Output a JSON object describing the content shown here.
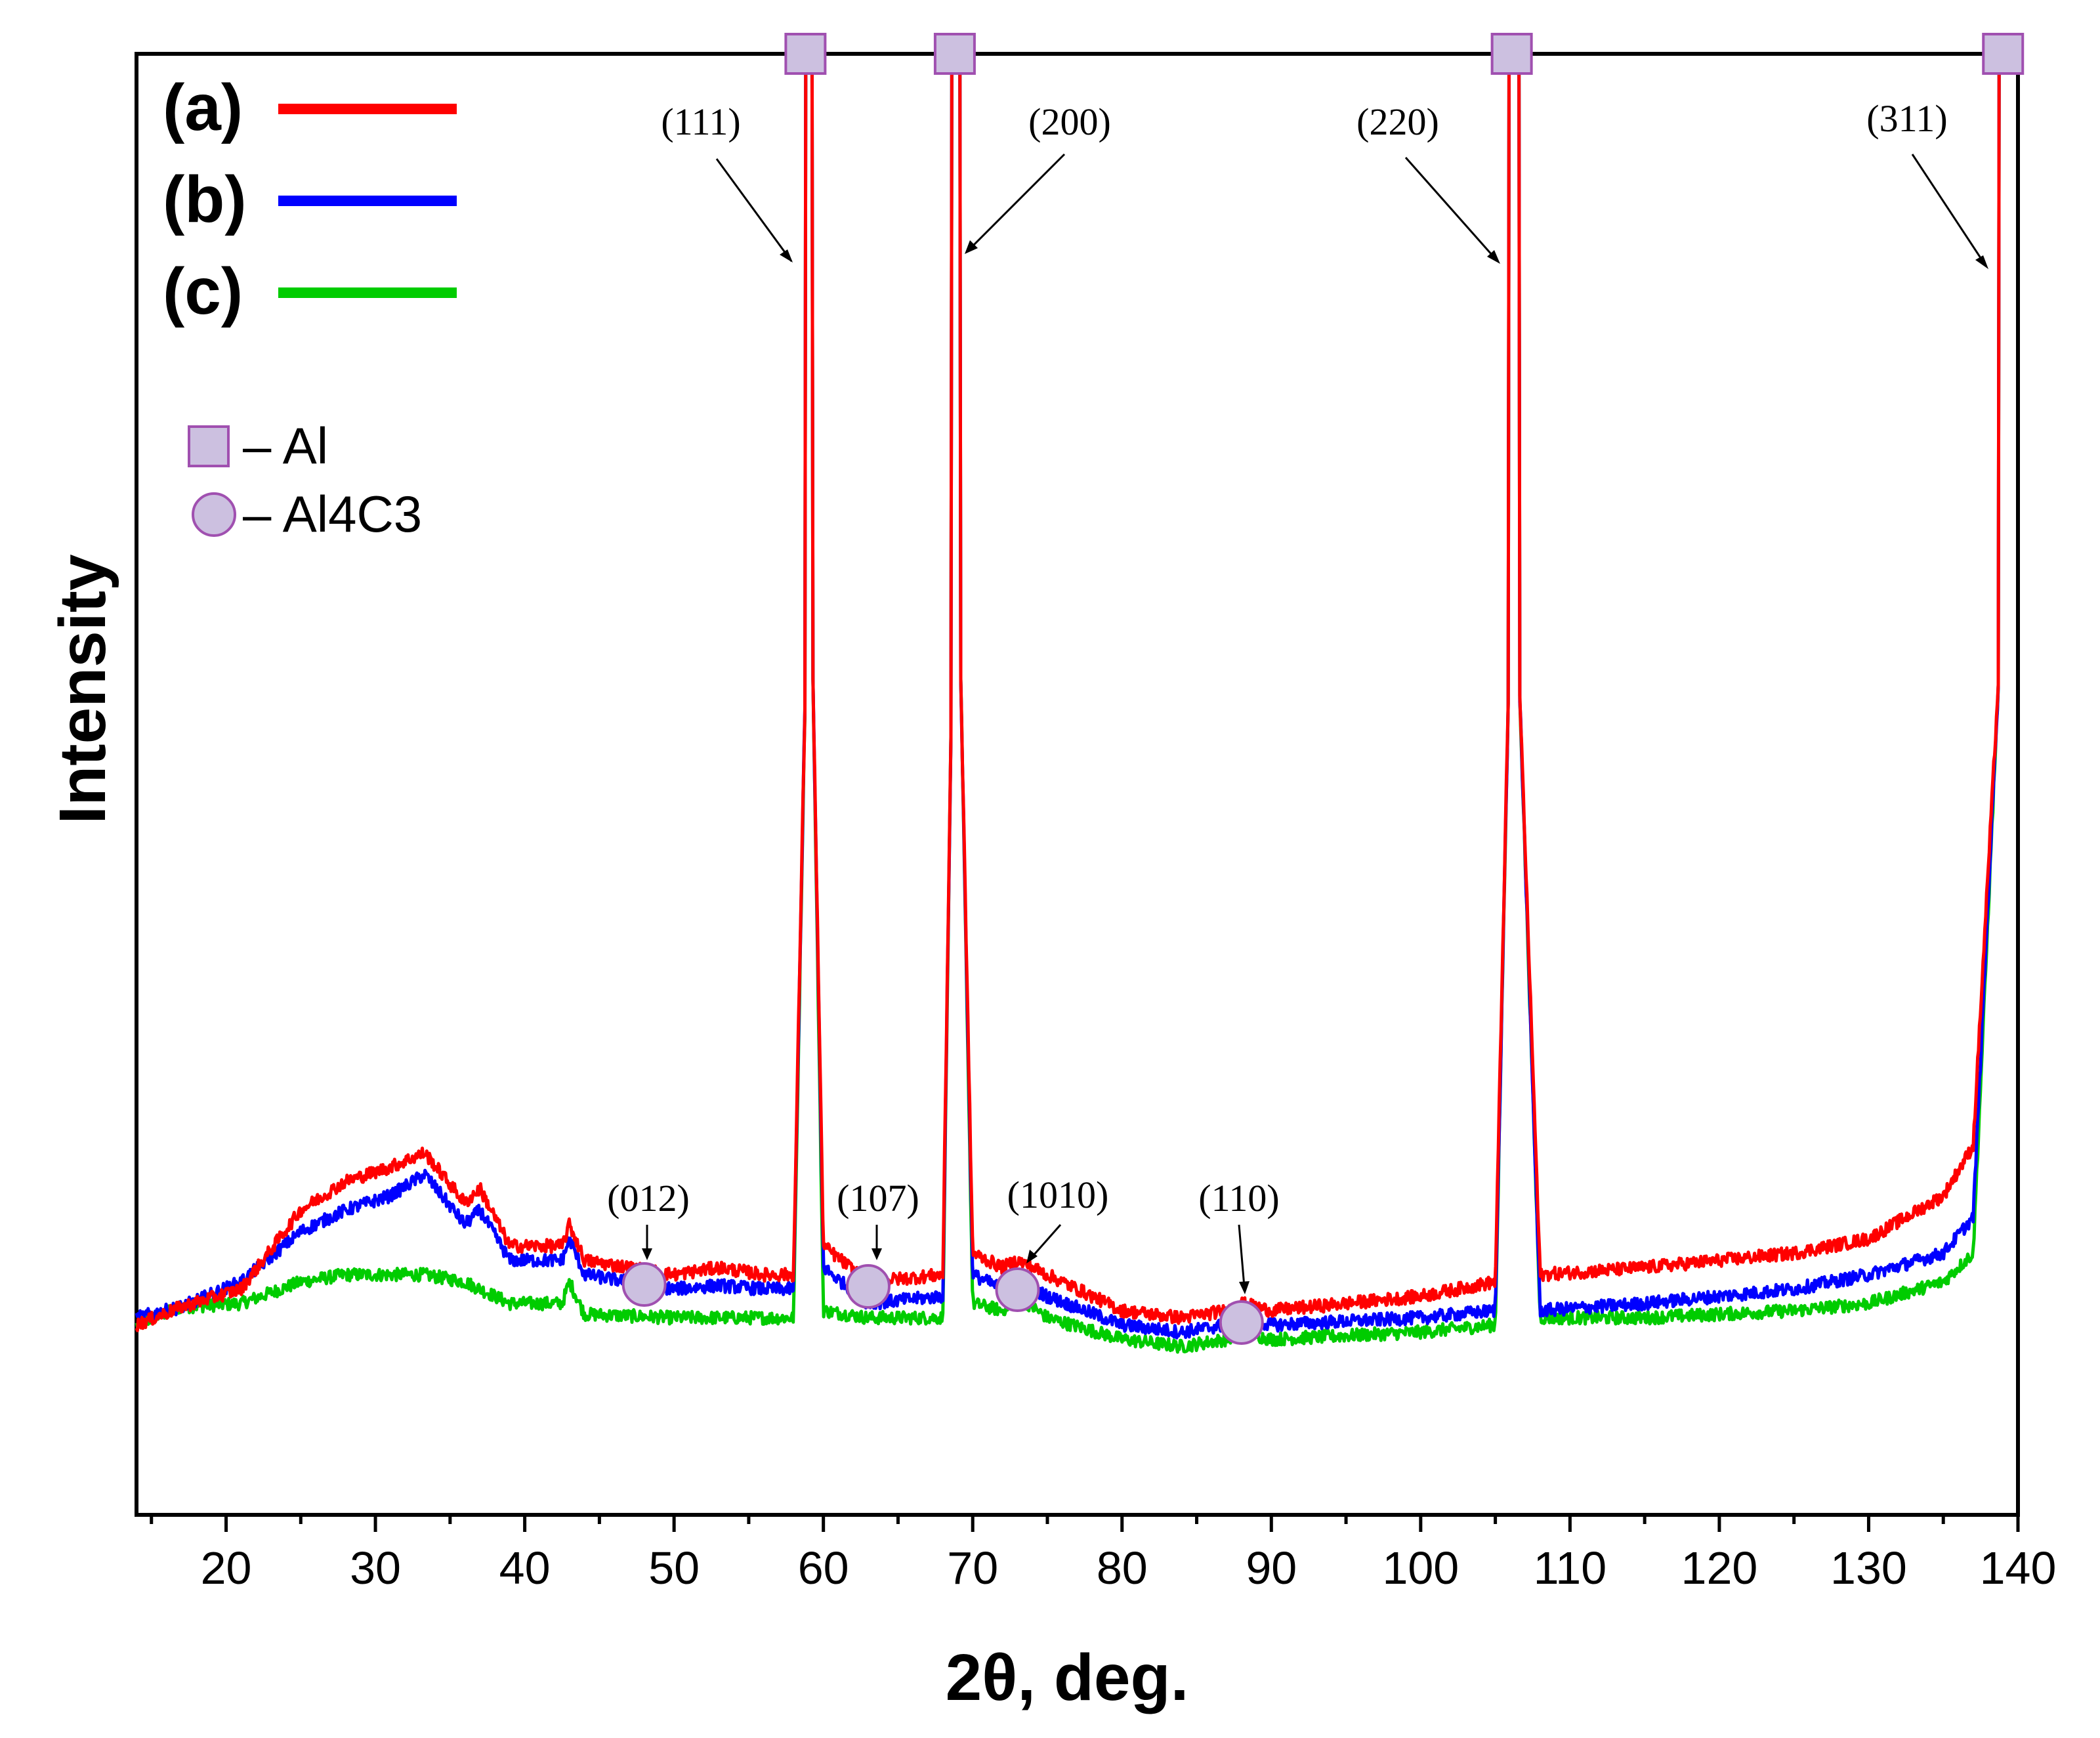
{
  "chart_data": {
    "type": "line",
    "title": "",
    "xlabel": "2θ, deg.",
    "ylabel": "Intensity",
    "xlim": [
      14,
      140
    ],
    "xticks": [
      "20",
      "30",
      "40",
      "50",
      "60",
      "70",
      "80",
      "90",
      "100",
      "110",
      "120",
      "130",
      "140"
    ],
    "grid": false,
    "legend_placement": "top-left",
    "series": [
      {
        "name": "(a)",
        "color": "#ff0000",
        "x": [
          14,
          17,
          21,
          25,
          28,
          31,
          33.3,
          36,
          37,
          39,
          42.5,
          43,
          44,
          50,
          53,
          56,
          58,
          58.8,
          59.3,
          60,
          63,
          68,
          68.6,
          69.2,
          70,
          72,
          73,
          75,
          80,
          84,
          87,
          88,
          90,
          100,
          105,
          105.9,
          106.6,
          108,
          115,
          125,
          130,
          135,
          137,
          138.7
        ],
        "y": [
          10,
          12.5,
          15,
          26,
          30,
          32,
          34,
          27,
          29,
          21,
          21,
          24,
          19,
          17,
          18,
          17,
          17,
          100,
          100,
          21,
          16,
          17,
          100,
          100,
          20,
          18,
          19,
          17,
          12,
          11,
          12,
          13,
          12,
          14,
          16,
          100,
          100,
          17,
          18,
          20,
          22,
          28,
          35,
          100
        ]
      },
      {
        "name": "(b)",
        "color": "#0000ff",
        "x": [
          14,
          17,
          21,
          25,
          28,
          31,
          33.3,
          36,
          37,
          39,
          42.5,
          43,
          44,
          50,
          53,
          56,
          58,
          58.8,
          59.3,
          60,
          63,
          68,
          68.6,
          69.2,
          70,
          72,
          73,
          75,
          80,
          84,
          87,
          88,
          90,
          100,
          105,
          105.9,
          106.6,
          108,
          115,
          125,
          130,
          135,
          137,
          138.7
        ],
        "y": [
          11,
          12.5,
          16,
          23,
          26,
          28,
          31,
          24,
          26,
          19,
          19,
          22,
          17,
          15,
          15.5,
          15,
          15,
          100,
          100,
          18,
          13,
          14,
          100,
          100,
          17,
          15,
          16,
          14,
          10,
          9,
          10,
          11,
          10,
          11,
          12,
          100,
          100,
          12,
          13,
          15,
          17,
          20,
          25,
          100
        ]
      },
      {
        "name": "(c)",
        "color": "#00cc00",
        "x": [
          14,
          17,
          21,
          25,
          28,
          31,
          33.3,
          36,
          37,
          39,
          42.5,
          43,
          44,
          50,
          53,
          56,
          58,
          58.8,
          59.3,
          60,
          63,
          68,
          68.6,
          69.2,
          70,
          72,
          73,
          75,
          80,
          84,
          87,
          88,
          90,
          100,
          105,
          105.9,
          106.6,
          108,
          115,
          125,
          130,
          135,
          137,
          138.7
        ],
        "y": [
          10,
          12.5,
          13,
          16,
          17,
          17,
          17,
          16,
          15,
          13,
          13,
          16,
          11.5,
          11,
          11,
          11,
          11,
          100,
          100,
          12,
          11,
          11,
          100,
          100,
          13,
          12,
          14,
          11,
          8,
          7,
          8,
          9,
          8,
          9,
          10,
          100,
          100,
          11,
          11,
          12,
          13,
          16,
          20,
          100
        ]
      }
    ],
    "peaks": [
      {
        "x": 58.8,
        "phase": "Al",
        "hkl": "(111)"
      },
      {
        "x": 68.8,
        "phase": "Al",
        "hkl": "(200)"
      },
      {
        "x": 106.1,
        "phase": "Al",
        "hkl": "(220)"
      },
      {
        "x": 139,
        "phase": "Al",
        "hkl": "(311)"
      },
      {
        "x": 48,
        "phase": "Al4C3",
        "hkl": "(012)"
      },
      {
        "x": 63,
        "phase": "Al4C3",
        "hkl": "(107)"
      },
      {
        "x": 73,
        "phase": "Al4C3",
        "hkl": "(1010)"
      },
      {
        "x": 88,
        "phase": "Al4C3",
        "hkl": "(110)"
      }
    ],
    "phase_legend": [
      {
        "symbol": "square",
        "label": "– Al"
      },
      {
        "symbol": "circle",
        "label": "– Al4C3"
      }
    ]
  },
  "colors": {
    "marker_fill": "#ccc0e0",
    "marker_stroke": "#a050b0"
  }
}
